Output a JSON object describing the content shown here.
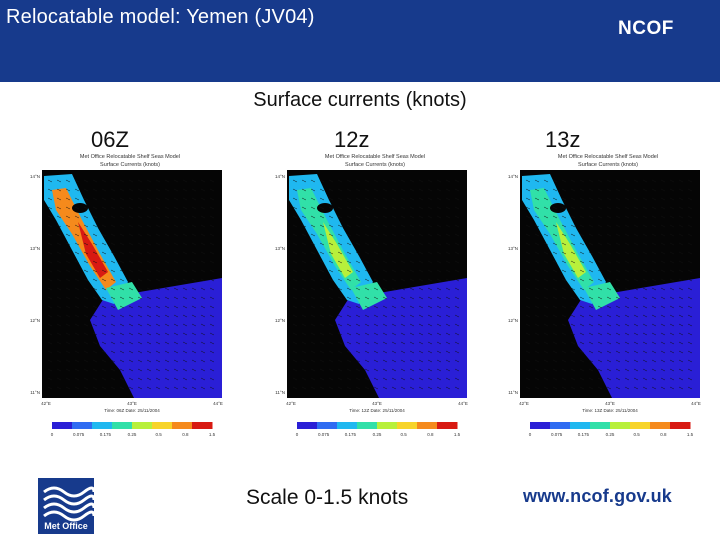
{
  "header": {
    "title": "Relocatable model: Yemen (JV04)",
    "logo_text": "NCOF",
    "background_color": "#173a8c"
  },
  "subtitle": "Surface currents (knots)",
  "panels": [
    {
      "time_label": "06Z",
      "plot_title_line1": "Met Office Relocatable Shelf Seas Model",
      "plot_title_line2": "Surface Currents (knots)",
      "footer_time": "Time: 06Z Date: 25/11/2004"
    },
    {
      "time_label": "12z",
      "plot_title_line1": "Met Office Relocatable Shelf Seas Model",
      "plot_title_line2": "Surface Currents (knots)",
      "footer_time": "Time: 12Z Date: 25/11/2004"
    },
    {
      "time_label": "13z",
      "plot_title_line1": "Met Office Relocatable Shelf Seas Model",
      "plot_title_line2": "Surface Currents (knots)",
      "footer_time": "Time: 13Z Date: 25/11/2004"
    }
  ],
  "axes": {
    "x_ticks": [
      "42°E",
      "43°E",
      "44°E"
    ],
    "y_ticks": [
      "14°N",
      "13°N",
      "12°N",
      "11°N"
    ]
  },
  "colorbar": {
    "ticks": [
      "0",
      "0.075",
      "0.175",
      "0.25",
      "0.5",
      "0.8",
      "1.5"
    ],
    "colors": [
      "#2a1fd6",
      "#2f6cf2",
      "#1fb8f0",
      "#31e0a8",
      "#b8f03b",
      "#f7d42a",
      "#f58a1c",
      "#d81a12"
    ]
  },
  "scale_note": "Scale 0-1.5 knots",
  "website": "www.ncof.gov.uk",
  "met_office": {
    "label": "Met Office"
  }
}
